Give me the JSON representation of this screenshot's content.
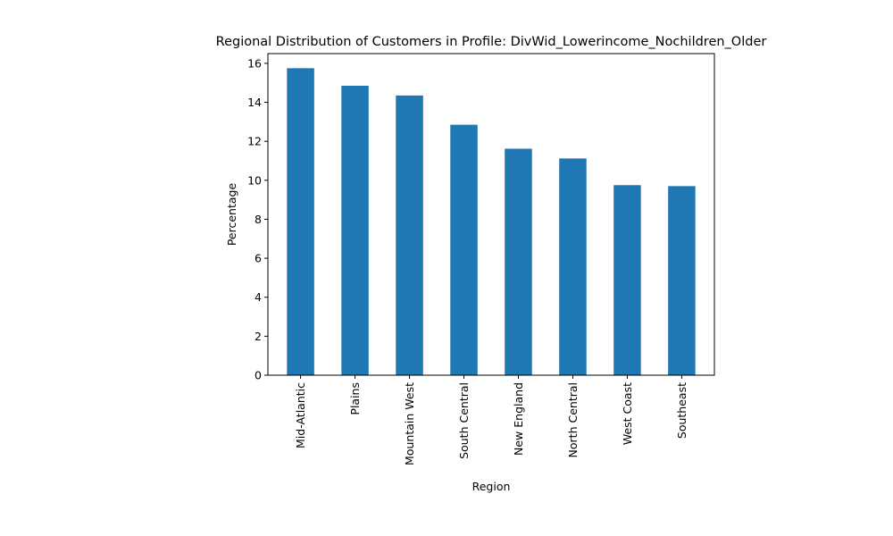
{
  "chart_data": {
    "type": "bar",
    "title": "Regional Distribution of Customers in Profile: DivWid_Lowerincome_Nochildren_Older",
    "xlabel": "Region",
    "ylabel": "Percentage",
    "categories": [
      "Mid-Atlantic",
      "Plains",
      "Mountain West",
      "South Central",
      "New England",
      "North Central",
      "West Coast",
      "Southeast"
    ],
    "values": [
      15.75,
      14.85,
      14.35,
      12.85,
      11.62,
      11.12,
      9.75,
      9.7
    ],
    "ylim": [
      0,
      16.5
    ],
    "yticks": [
      0,
      2,
      4,
      6,
      8,
      10,
      12,
      14,
      16
    ],
    "bar_color": "#1f77b4",
    "grid": false,
    "legend": "none"
  }
}
